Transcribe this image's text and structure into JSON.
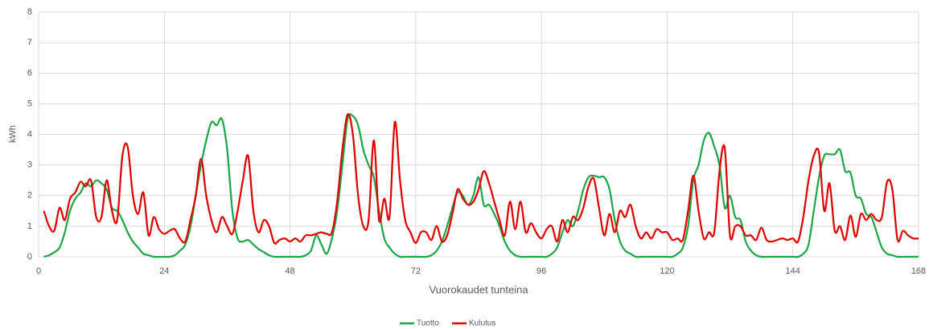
{
  "chart_data": {
    "type": "line",
    "ylabel": "kWh",
    "xlabel": "Vuorokaudet tunteina",
    "x": [
      1,
      2,
      3,
      4,
      5,
      6,
      7,
      8,
      9,
      10,
      11,
      12,
      13,
      14,
      15,
      16,
      17,
      18,
      19,
      20,
      21,
      22,
      23,
      24,
      25,
      26,
      27,
      28,
      29,
      30,
      31,
      32,
      33,
      34,
      35,
      36,
      37,
      38,
      39,
      40,
      41,
      42,
      43,
      44,
      45,
      46,
      47,
      48,
      49,
      50,
      51,
      52,
      53,
      54,
      55,
      56,
      57,
      58,
      59,
      60,
      61,
      62,
      63,
      64,
      65,
      66,
      67,
      68,
      69,
      70,
      71,
      72,
      73,
      74,
      75,
      76,
      77,
      78,
      79,
      80,
      81,
      82,
      83,
      84,
      85,
      86,
      87,
      88,
      89,
      90,
      91,
      92,
      93,
      94,
      95,
      96,
      97,
      98,
      99,
      100,
      101,
      102,
      103,
      104,
      105,
      106,
      107,
      108,
      109,
      110,
      111,
      112,
      113,
      114,
      115,
      116,
      117,
      118,
      119,
      120,
      121,
      122,
      123,
      124,
      125,
      126,
      127,
      128,
      129,
      130,
      131,
      132,
      133,
      134,
      135,
      136,
      137,
      138,
      139,
      140,
      141,
      142,
      143,
      144,
      145,
      146,
      147,
      148,
      149,
      150,
      151,
      152,
      153,
      154,
      155,
      156,
      157,
      158,
      159,
      160,
      161,
      162,
      163,
      164,
      165,
      166,
      167,
      168
    ],
    "series": [
      {
        "name": "Tuotto",
        "color": "#1fa64a",
        "values": [
          0,
          0.05,
          0.15,
          0.3,
          0.8,
          1.5,
          1.9,
          2.1,
          2.4,
          2.3,
          2.5,
          2.4,
          2.2,
          1.6,
          1.5,
          1.2,
          0.8,
          0.5,
          0.3,
          0.1,
          0.05,
          0,
          0,
          0,
          0,
          0.05,
          0.2,
          0.4,
          1.0,
          2.0,
          3.0,
          3.8,
          4.4,
          4.3,
          4.5,
          3.5,
          1.5,
          0.6,
          0.5,
          0.55,
          0.4,
          0.25,
          0.15,
          0.05,
          0,
          0,
          0,
          0,
          0,
          0,
          0.05,
          0.2,
          0.7,
          0.4,
          0.1,
          0.6,
          1.5,
          3.0,
          4.5,
          4.6,
          4.3,
          3.5,
          3.0,
          2.6,
          1.5,
          0.6,
          0.3,
          0.1,
          0,
          0,
          0,
          0,
          0,
          0,
          0.05,
          0.2,
          0.5,
          1.0,
          1.6,
          2.1,
          2.0,
          1.7,
          2.0,
          2.6,
          1.7,
          1.7,
          1.4,
          1.0,
          0.5,
          0.2,
          0.05,
          0,
          0,
          0,
          0,
          0,
          0,
          0.1,
          0.3,
          0.8,
          1.2,
          1.0,
          1.5,
          2.2,
          2.6,
          2.65,
          2.6,
          2.6,
          2.2,
          1.2,
          0.5,
          0.2,
          0.1,
          0,
          0,
          0,
          0,
          0,
          0,
          0,
          0,
          0.1,
          0.3,
          1.0,
          2.5,
          3.0,
          3.8,
          4.05,
          3.6,
          3.0,
          1.6,
          2.0,
          1.3,
          1.2,
          0.5,
          0.2,
          0.05,
          0,
          0,
          0,
          0,
          0,
          0,
          0,
          0,
          0.1,
          0.4,
          1.5,
          2.6,
          3.3,
          3.35,
          3.35,
          3.5,
          2.8,
          2.75,
          2.0,
          1.9,
          1.4,
          1.3,
          0.8,
          0.3,
          0.1,
          0.05,
          0,
          0,
          0,
          0,
          0
        ]
      },
      {
        "name": "Kulutus",
        "color": "#e00000",
        "values": [
          1.5,
          1.0,
          0.85,
          1.6,
          1.2,
          1.9,
          2.1,
          2.45,
          2.3,
          2.5,
          1.3,
          1.3,
          2.5,
          1.5,
          1.2,
          3.3,
          3.6,
          2.0,
          1.4,
          2.1,
          0.7,
          1.3,
          0.9,
          0.75,
          0.85,
          0.9,
          0.6,
          0.5,
          1.2,
          2.0,
          3.2,
          2.0,
          1.2,
          0.8,
          1.3,
          1.0,
          0.75,
          1.5,
          2.5,
          3.3,
          1.5,
          0.8,
          1.2,
          1.0,
          0.45,
          0.55,
          0.6,
          0.5,
          0.6,
          0.5,
          0.7,
          0.7,
          0.75,
          0.8,
          0.75,
          0.8,
          1.8,
          3.5,
          4.65,
          4.0,
          2.0,
          1.0,
          1.2,
          3.8,
          1.2,
          1.9,
          1.3,
          4.4,
          2.5,
          1.2,
          0.8,
          0.45,
          0.8,
          0.8,
          0.55,
          1.0,
          0.5,
          0.7,
          1.4,
          2.2,
          1.9,
          1.7,
          1.8,
          2.2,
          2.8,
          2.4,
          1.8,
          1.2,
          0.7,
          1.8,
          0.9,
          1.8,
          0.8,
          1.1,
          0.8,
          0.6,
          0.9,
          1.0,
          0.5,
          1.2,
          0.8,
          1.3,
          1.2,
          1.6,
          2.3,
          2.55,
          1.6,
          0.7,
          1.4,
          0.8,
          1.5,
          1.3,
          1.7,
          1.0,
          0.6,
          0.8,
          0.6,
          0.9,
          0.8,
          0.8,
          0.55,
          0.6,
          0.55,
          1.5,
          2.65,
          1.5,
          0.6,
          0.8,
          0.8,
          2.8,
          3.55,
          0.7,
          1.0,
          1.0,
          0.7,
          0.7,
          0.55,
          0.95,
          0.55,
          0.5,
          0.55,
          0.6,
          0.55,
          0.6,
          0.5,
          1.3,
          2.5,
          3.3,
          3.4,
          1.5,
          2.4,
          0.85,
          1.0,
          0.55,
          1.35,
          0.65,
          1.4,
          1.2,
          1.4,
          1.2,
          1.3,
          2.45,
          2.2,
          0.55,
          0.85,
          0.7,
          0.6,
          0.6
        ]
      }
    ],
    "xlim": [
      0,
      168
    ],
    "xticks": [
      0,
      24,
      48,
      72,
      96,
      120,
      144,
      168
    ],
    "ylim": [
      0,
      8
    ],
    "yticks": [
      0,
      1,
      2,
      3,
      4,
      5,
      6,
      7,
      8
    ],
    "grid": true,
    "legend": "bottom"
  }
}
